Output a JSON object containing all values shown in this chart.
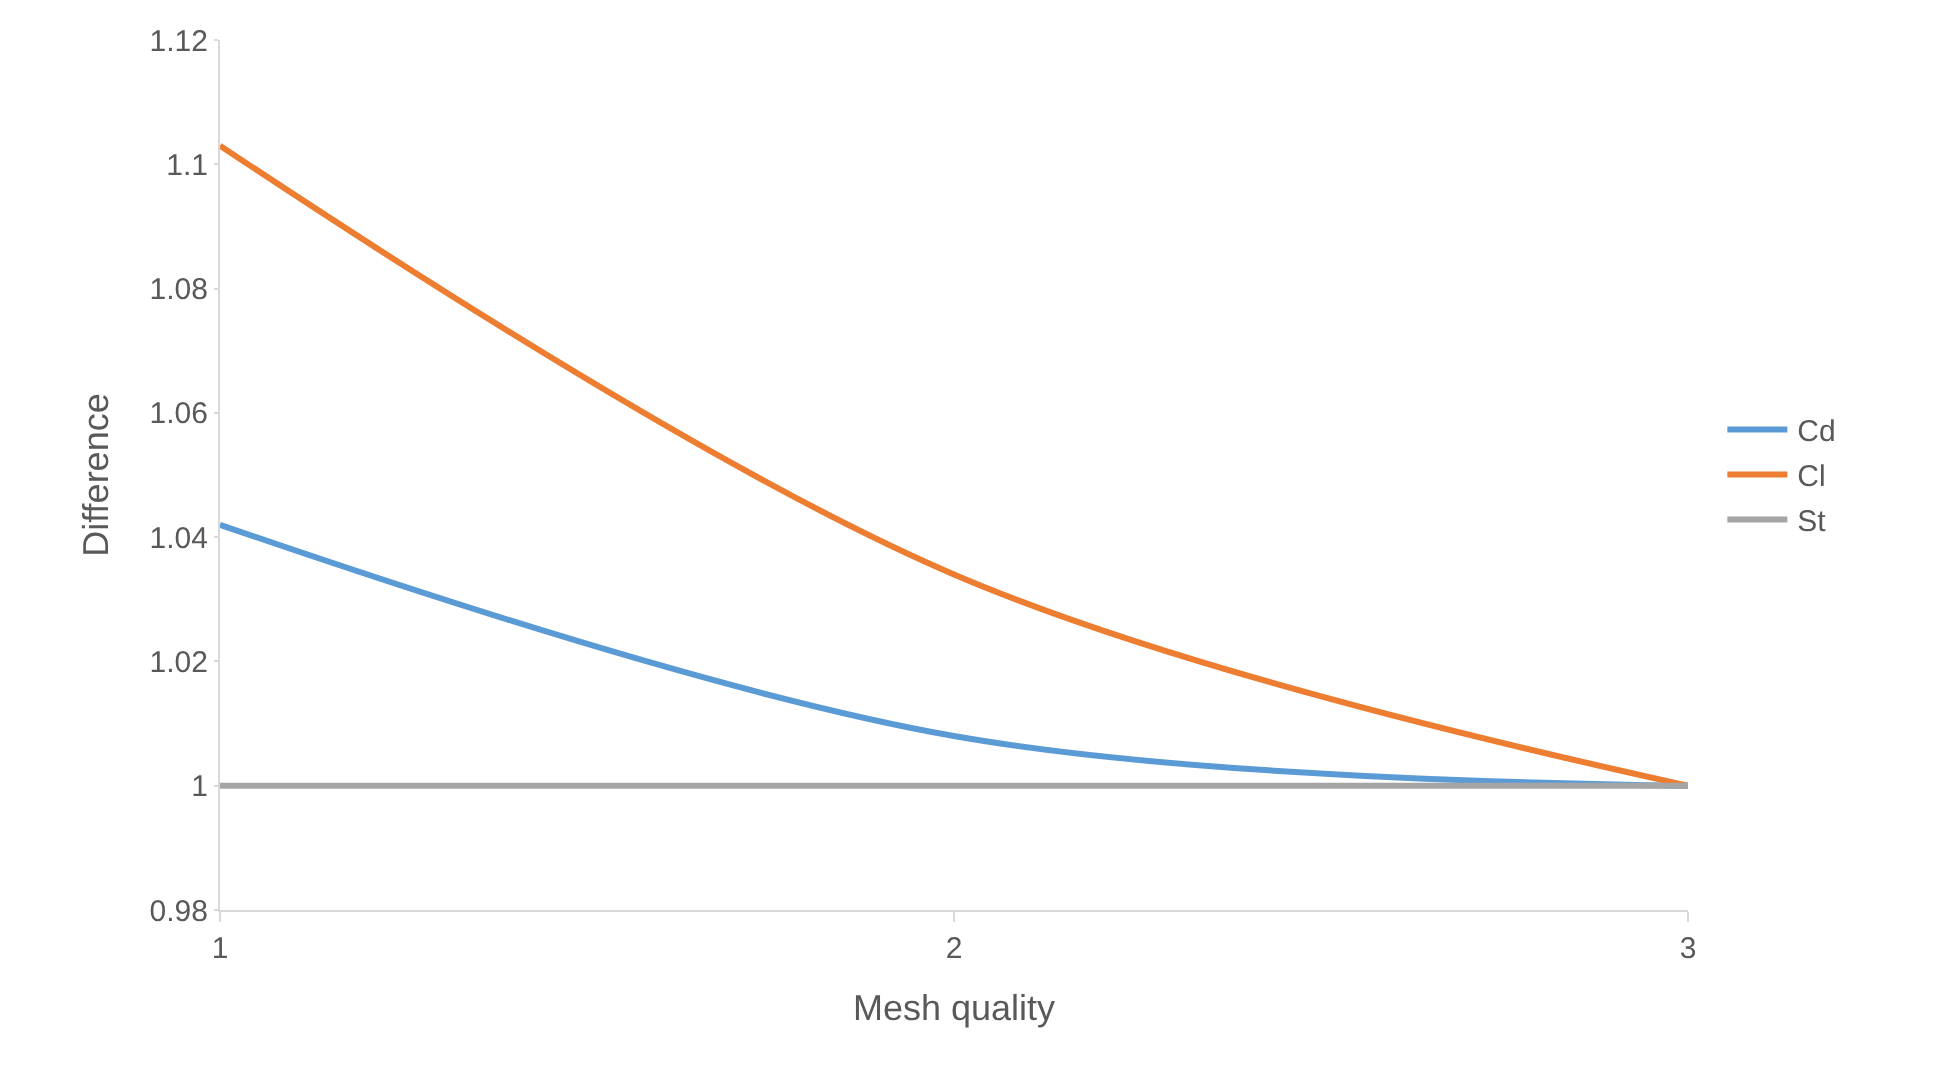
{
  "chart_data": {
    "type": "line",
    "xlabel": "Mesh quality",
    "ylabel": "Difference",
    "categories": [
      "1",
      "2",
      "3"
    ],
    "series": [
      {
        "name": "Cd",
        "color": "#5b9bd5",
        "values": [
          1.042,
          1.008,
          1.0
        ]
      },
      {
        "name": "Cl",
        "color": "#ed7d31",
        "values": [
          1.103,
          1.034,
          1.0
        ]
      },
      {
        "name": "St",
        "color": "#a5a5a5",
        "values": [
          1.0,
          1.0,
          1.0
        ]
      }
    ],
    "ylim": [
      0.98,
      1.12
    ],
    "yticks": [
      0.98,
      1,
      1.02,
      1.04,
      1.06,
      1.08,
      1.1,
      1.12
    ],
    "grid": false,
    "legend": "right",
    "marker": "none",
    "line_style": "solid"
  }
}
